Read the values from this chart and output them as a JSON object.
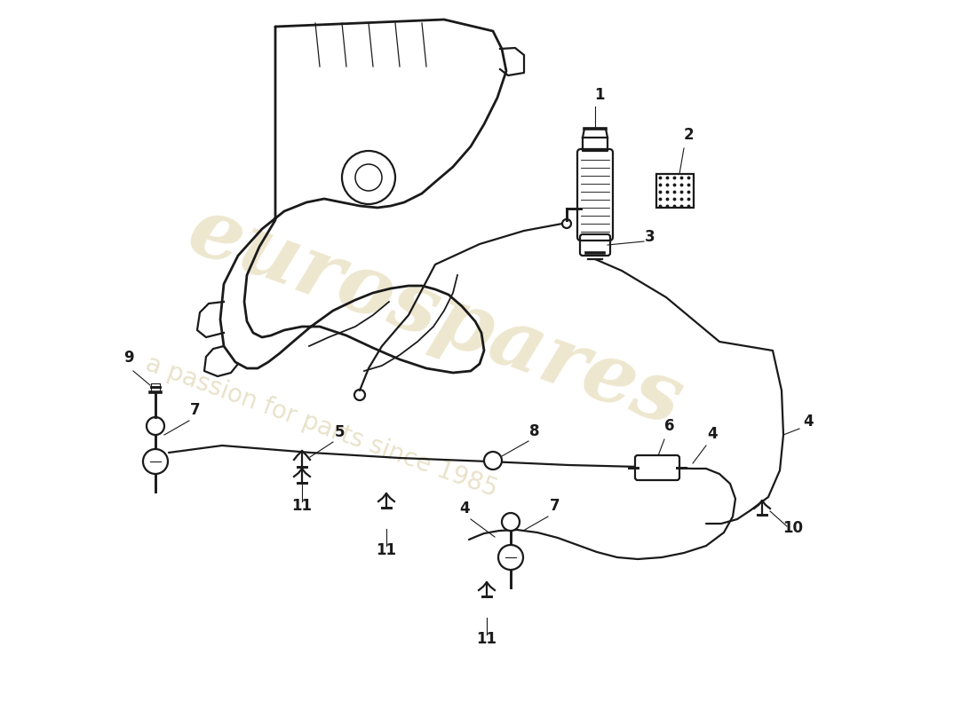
{
  "background_color": "#ffffff",
  "line_color": "#1a1a1a",
  "label_color": "#111111",
  "watermark_color1": "#c8b060",
  "watermark_color2": "#b8a050",
  "watermark_alpha": 0.3,
  "lw": 1.6
}
